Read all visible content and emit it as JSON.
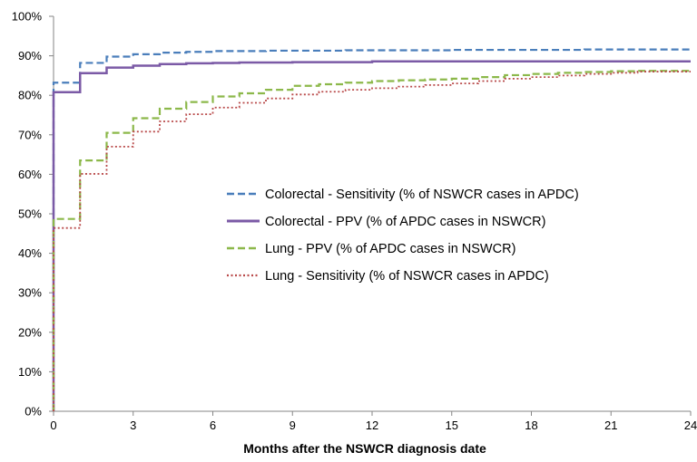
{
  "chart_data": {
    "type": "line",
    "title": "",
    "xlabel": "Months after the NSWCR diagnosis date",
    "ylabel": "",
    "xlim": [
      0,
      24
    ],
    "ylim": [
      0,
      100
    ],
    "x_ticks": [
      0,
      3,
      6,
      9,
      12,
      15,
      18,
      21,
      24
    ],
    "y_ticks": [
      0,
      10,
      20,
      30,
      40,
      50,
      60,
      70,
      80,
      90,
      100
    ],
    "y_tick_suffix": "%",
    "grid": false,
    "legend_position": "center-right",
    "step": true,
    "series": [
      {
        "name": "Colorectal - Sensitivity (% of NSWCR cases in APDC)",
        "color": "#4a7ebb",
        "style": "dashed",
        "points": [
          [
            0,
            0
          ],
          [
            0,
            83.2
          ],
          [
            1,
            83.2
          ],
          [
            1,
            88.2
          ],
          [
            2,
            88.2
          ],
          [
            2,
            89.8
          ],
          [
            3,
            89.8
          ],
          [
            3,
            90.4
          ],
          [
            4,
            90.4
          ],
          [
            4,
            90.8
          ],
          [
            5,
            90.8
          ],
          [
            5,
            91.0
          ],
          [
            6,
            91.0
          ],
          [
            6,
            91.2
          ],
          [
            8,
            91.2
          ],
          [
            8,
            91.3
          ],
          [
            11,
            91.3
          ],
          [
            11,
            91.4
          ],
          [
            15,
            91.4
          ],
          [
            15,
            91.5
          ],
          [
            20,
            91.5
          ],
          [
            20,
            91.6
          ],
          [
            24,
            91.6
          ]
        ]
      },
      {
        "name": "Colorectal - PPV (% of APDC cases in NSWCR)",
        "color": "#7b5aa6",
        "style": "solid",
        "points": [
          [
            0,
            0
          ],
          [
            0,
            80.8
          ],
          [
            1,
            80.8
          ],
          [
            1,
            85.6
          ],
          [
            2,
            85.6
          ],
          [
            2,
            87.0
          ],
          [
            3,
            87.0
          ],
          [
            3,
            87.5
          ],
          [
            4,
            87.5
          ],
          [
            4,
            87.9
          ],
          [
            5,
            87.9
          ],
          [
            5,
            88.1
          ],
          [
            6,
            88.1
          ],
          [
            6,
            88.2
          ],
          [
            7,
            88.2
          ],
          [
            7,
            88.3
          ],
          [
            9,
            88.3
          ],
          [
            9,
            88.4
          ],
          [
            12,
            88.4
          ],
          [
            12,
            88.6
          ],
          [
            24,
            88.6
          ]
        ]
      },
      {
        "name": "Lung - PPV (% of APDC cases in NSWCR)",
        "color": "#8cb84a",
        "style": "dashed",
        "points": [
          [
            0,
            0
          ],
          [
            0,
            48.7
          ],
          [
            1,
            48.7
          ],
          [
            1,
            63.5
          ],
          [
            2,
            63.5
          ],
          [
            2,
            70.5
          ],
          [
            3,
            70.5
          ],
          [
            3,
            74.2
          ],
          [
            4,
            74.2
          ],
          [
            4,
            76.6
          ],
          [
            5,
            76.6
          ],
          [
            5,
            78.3
          ],
          [
            6,
            78.3
          ],
          [
            6,
            79.7
          ],
          [
            7,
            79.7
          ],
          [
            7,
            80.5
          ],
          [
            8,
            80.5
          ],
          [
            8,
            81.4
          ],
          [
            9,
            81.4
          ],
          [
            9,
            82.4
          ],
          [
            10,
            82.4
          ],
          [
            10,
            82.8
          ],
          [
            11,
            82.8
          ],
          [
            11,
            83.2
          ],
          [
            12,
            83.2
          ],
          [
            12,
            83.6
          ],
          [
            13,
            83.6
          ],
          [
            13,
            83.8
          ],
          [
            14,
            83.8
          ],
          [
            14,
            84.0
          ],
          [
            15,
            84.0
          ],
          [
            15,
            84.2
          ],
          [
            16,
            84.2
          ],
          [
            16,
            84.6
          ],
          [
            17,
            84.6
          ],
          [
            17,
            85.1
          ],
          [
            18,
            85.1
          ],
          [
            18,
            85.4
          ],
          [
            19,
            85.4
          ],
          [
            19,
            85.7
          ],
          [
            20,
            85.7
          ],
          [
            20,
            85.9
          ],
          [
            21,
            85.9
          ],
          [
            21,
            86.1
          ],
          [
            22,
            86.1
          ],
          [
            22,
            86.2
          ],
          [
            24,
            86.2
          ]
        ]
      },
      {
        "name": "Lung - Sensitivity (% of NSWCR cases in APDC)",
        "color": "#b94a4a",
        "style": "dotted",
        "points": [
          [
            0,
            0
          ],
          [
            0,
            46.4
          ],
          [
            1,
            46.4
          ],
          [
            1,
            60.1
          ],
          [
            2,
            60.1
          ],
          [
            2,
            67.0
          ],
          [
            3,
            67.0
          ],
          [
            3,
            70.8
          ],
          [
            4,
            70.8
          ],
          [
            4,
            73.4
          ],
          [
            5,
            73.4
          ],
          [
            5,
            75.2
          ],
          [
            6,
            75.2
          ],
          [
            6,
            76.9
          ],
          [
            7,
            76.9
          ],
          [
            7,
            78.1
          ],
          [
            8,
            78.1
          ],
          [
            8,
            79.2
          ],
          [
            9,
            79.2
          ],
          [
            9,
            80.2
          ],
          [
            10,
            80.2
          ],
          [
            10,
            80.9
          ],
          [
            11,
            80.9
          ],
          [
            11,
            81.4
          ],
          [
            12,
            81.4
          ],
          [
            12,
            81.8
          ],
          [
            13,
            81.8
          ],
          [
            13,
            82.2
          ],
          [
            14,
            82.2
          ],
          [
            14,
            82.6
          ],
          [
            15,
            82.6
          ],
          [
            15,
            83.0
          ],
          [
            16,
            83.0
          ],
          [
            16,
            83.6
          ],
          [
            17,
            83.6
          ],
          [
            17,
            84.2
          ],
          [
            18,
            84.2
          ],
          [
            18,
            84.6
          ],
          [
            19,
            84.6
          ],
          [
            19,
            85.0
          ],
          [
            20,
            85.0
          ],
          [
            20,
            85.4
          ],
          [
            21,
            85.4
          ],
          [
            21,
            85.7
          ],
          [
            22,
            85.7
          ],
          [
            22,
            86.0
          ],
          [
            24,
            86.0
          ]
        ]
      }
    ]
  }
}
